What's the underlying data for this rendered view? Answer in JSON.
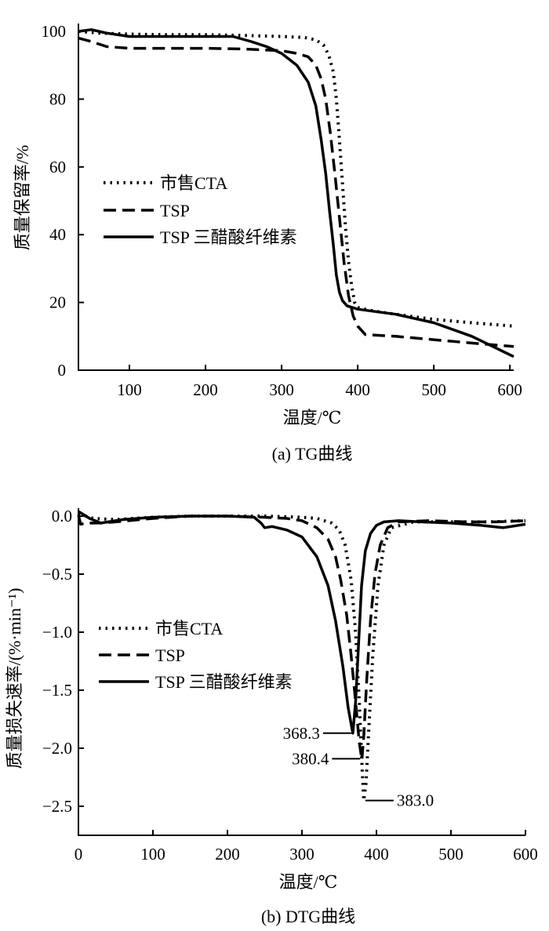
{
  "chart_data": [
    {
      "id": "tg",
      "type": "line",
      "caption": "(a) TG曲线",
      "xlabel": "温度/℃",
      "ylabel": "质量保留率/%",
      "xlim": [
        33,
        605
      ],
      "ylim": [
        0,
        100
      ],
      "xticks": [
        100,
        200,
        300,
        400,
        500,
        600
      ],
      "yticks": [
        0,
        20,
        40,
        60,
        80,
        100
      ],
      "ytick_labels": [
        "0",
        "20",
        "40",
        "60",
        "80",
        "100"
      ],
      "legend": {
        "position": "center-left"
      },
      "series": [
        {
          "name": "市售CTA",
          "style": "dotted",
          "x": [
            33,
            60,
            100,
            150,
            200,
            250,
            300,
            330,
            345,
            355,
            362,
            368,
            372,
            376,
            380,
            384,
            388,
            392,
            396,
            400,
            420,
            450,
            500,
            550,
            605
          ],
          "y": [
            100,
            99.5,
            99.2,
            99,
            99,
            98.8,
            98.5,
            98.2,
            97.5,
            96,
            93,
            88,
            80,
            68,
            55,
            42,
            32,
            25,
            20,
            18.5,
            17.5,
            16.5,
            15,
            14,
            13
          ]
        },
        {
          "name": "TSP",
          "style": "dashed",
          "x": [
            33,
            50,
            70,
            100,
            150,
            200,
            250,
            300,
            320,
            335,
            345,
            352,
            358,
            364,
            370,
            376,
            382,
            388,
            394,
            400,
            410,
            450,
            500,
            550,
            605
          ],
          "y": [
            98,
            97,
            95.5,
            95,
            95,
            95,
            94.8,
            94.3,
            93.5,
            92.5,
            90,
            86,
            80,
            70,
            58,
            45,
            32,
            22,
            16,
            13,
            10.5,
            10,
            9,
            8,
            7
          ]
        },
        {
          "name": "TSP 三醋酸纤维素",
          "style": "solid",
          "x": [
            33,
            50,
            70,
            100,
            150,
            200,
            236,
            260,
            280,
            300,
            320,
            335,
            345,
            352,
            358,
            363,
            368,
            372,
            376,
            380,
            386,
            400,
            450,
            500,
            550,
            605
          ],
          "y": [
            100,
            100.5,
            99.5,
            98.5,
            98.5,
            98.5,
            98.5,
            97,
            95.5,
            93.5,
            90,
            85,
            78,
            68,
            58,
            47,
            37,
            28,
            23,
            20.5,
            19,
            18,
            16.5,
            14,
            10,
            4
          ]
        }
      ],
      "annotations": []
    },
    {
      "id": "dtg",
      "type": "line",
      "caption": "(b) DTG曲线",
      "xlabel": "温度/℃",
      "ylabel": "质量损失速率/(%·min⁻¹)",
      "xlim": [
        0,
        600
      ],
      "ylim": [
        -2.75,
        0.05
      ],
      "xticks": [
        0,
        100,
        200,
        300,
        400,
        500,
        600
      ],
      "yticks": [
        0,
        -0.5,
        -1.0,
        -1.5,
        -2.0,
        -2.5
      ],
      "ytick_labels": [
        "0.0",
        "−0.5",
        "−1.0",
        "−1.5",
        "−2.0",
        "−2.5"
      ],
      "legend": {
        "position": "center-left"
      },
      "series": [
        {
          "name": "市售CTA",
          "style": "dotted",
          "x": [
            0,
            5,
            20,
            50,
            100,
            150,
            200,
            250,
            300,
            320,
            340,
            350,
            358,
            366,
            372,
            377,
            381,
            383,
            386,
            390,
            395,
            402,
            410,
            420,
            450,
            500,
            550,
            600
          ],
          "y": [
            0.02,
            0.01,
            -0.02,
            -0.03,
            -0.01,
            0,
            0,
            0,
            -0.01,
            -0.02,
            -0.06,
            -0.12,
            -0.25,
            -0.55,
            -1.0,
            -1.6,
            -2.2,
            -2.45,
            -2.3,
            -1.8,
            -1.2,
            -0.6,
            -0.25,
            -0.1,
            -0.05,
            -0.05,
            -0.05,
            -0.04
          ]
        },
        {
          "name": "TSP",
          "style": "dashed",
          "x": [
            0,
            3,
            10,
            30,
            50,
            100,
            150,
            200,
            250,
            280,
            300,
            320,
            335,
            345,
            352,
            360,
            366,
            372,
            377,
            380.4,
            383,
            387,
            392,
            398,
            405,
            415,
            430,
            470,
            520,
            560,
            600
          ],
          "y": [
            0.01,
            -0.07,
            -0.06,
            -0.06,
            -0.05,
            -0.02,
            0,
            0,
            -0.01,
            -0.02,
            -0.04,
            -0.1,
            -0.2,
            -0.35,
            -0.55,
            -0.85,
            -1.2,
            -1.6,
            -1.95,
            -2.1,
            -1.9,
            -1.4,
            -0.9,
            -0.5,
            -0.25,
            -0.1,
            -0.05,
            -0.04,
            -0.05,
            -0.05,
            -0.04
          ]
        },
        {
          "name": "TSP 三醋酸纤维素",
          "style": "solid",
          "x": [
            0,
            5,
            15,
            30,
            60,
            100,
            150,
            200,
            236,
            245,
            250,
            260,
            280,
            300,
            320,
            335,
            345,
            355,
            362,
            368.3,
            372,
            376,
            380,
            385,
            392,
            400,
            410,
            430,
            460,
            500,
            540,
            570,
            600
          ],
          "y": [
            0.04,
            0.02,
            -0.02,
            -0.06,
            -0.03,
            -0.01,
            0,
            0,
            -0.01,
            -0.06,
            -0.1,
            -0.09,
            -0.12,
            -0.18,
            -0.35,
            -0.6,
            -0.9,
            -1.3,
            -1.65,
            -1.87,
            -1.6,
            -1.1,
            -0.6,
            -0.3,
            -0.15,
            -0.08,
            -0.05,
            -0.04,
            -0.05,
            -0.06,
            -0.08,
            -0.1,
            -0.07
          ]
        }
      ],
      "annotations": [
        {
          "label": "368.3",
          "x": 368.3,
          "y": -1.87,
          "side": "left"
        },
        {
          "label": "380.4",
          "x": 380.4,
          "y": -2.09,
          "side": "left"
        },
        {
          "label": "383.0",
          "x": 383.0,
          "y": -2.45,
          "side": "right"
        }
      ]
    }
  ]
}
